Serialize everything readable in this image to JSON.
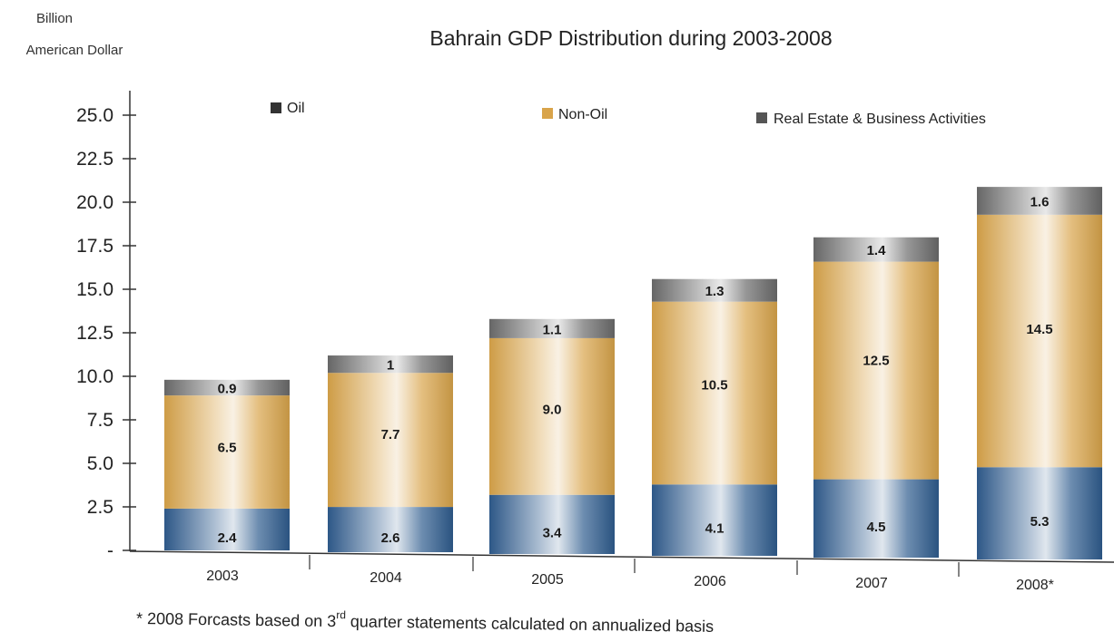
{
  "chart_data": {
    "type": "bar",
    "stacked": true,
    "title": "Bahrain GDP Distribution during 2003-2008",
    "ylabel": [
      "Billion",
      "American Dollar"
    ],
    "xlabel": "",
    "categories": [
      "2003",
      "2004",
      "2005",
      "2006",
      "2007",
      "2008*"
    ],
    "ylim": [
      0,
      25
    ],
    "yticks": [
      "-",
      "2.5",
      "5.0",
      "7.5",
      "10.0",
      "12.5",
      "15.0",
      "17.5",
      "20.0",
      "22.5",
      "25.0"
    ],
    "series": [
      {
        "name": "Oil",
        "color": "#2f5c8e",
        "values": [
          2.4,
          2.6,
          3.4,
          4.1,
          4.5,
          5.3
        ],
        "labels": [
          "2.4",
          "2.6",
          "3.4",
          "4.1",
          "4.5",
          "5.3"
        ]
      },
      {
        "name": "Non-Oil",
        "color": "#d9a44a",
        "values": [
          6.5,
          7.7,
          9.0,
          10.5,
          12.5,
          14.5
        ],
        "labels": [
          "6.5",
          "7.7",
          "9.0",
          "10.5",
          "12.5",
          "14.5"
        ]
      },
      {
        "name": "Real Estate & Business Activities",
        "color": "#6b6b6b",
        "values": [
          0.9,
          1,
          1.1,
          1.3,
          1.4,
          1.6
        ],
        "labels": [
          "0.9",
          "1",
          "1.1",
          "1.3",
          "1.4",
          "1.6"
        ]
      }
    ],
    "legend_colors": [
      "#333333",
      "#d9a44a",
      "#555555"
    ],
    "grid": false,
    "legend_position": "top"
  },
  "footnote": {
    "prefix": "* 2008 Forcasts based on 3",
    "sup": "rd",
    "suffix": " quarter statements calculated on annualized basis"
  }
}
